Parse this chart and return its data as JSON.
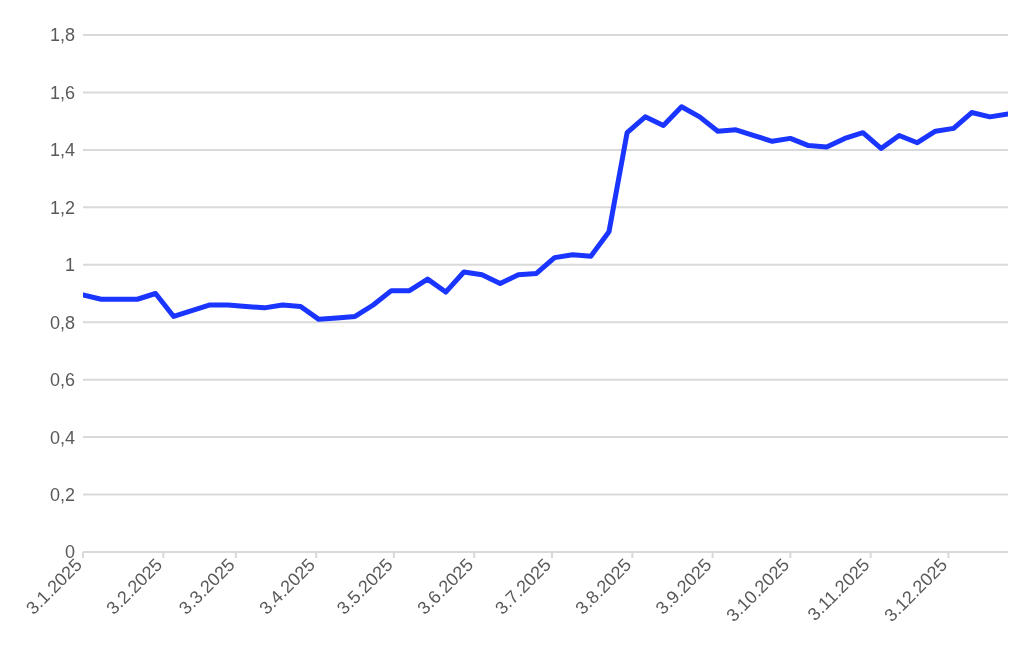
{
  "chart_data": {
    "type": "line",
    "x": [
      "2025-01-03",
      "2025-01-10",
      "2025-01-17",
      "2025-01-24",
      "2025-01-31",
      "2025-02-07",
      "2025-02-14",
      "2025-02-21",
      "2025-02-28",
      "2025-03-07",
      "2025-03-14",
      "2025-03-21",
      "2025-03-28",
      "2025-04-04",
      "2025-04-11",
      "2025-04-18",
      "2025-04-25",
      "2025-05-02",
      "2025-05-09",
      "2025-05-16",
      "2025-05-23",
      "2025-05-30",
      "2025-06-06",
      "2025-06-13",
      "2025-06-20",
      "2025-06-27",
      "2025-07-04",
      "2025-07-11",
      "2025-07-18",
      "2025-07-25",
      "2025-08-01",
      "2025-08-08",
      "2025-08-15",
      "2025-08-22",
      "2025-08-29",
      "2025-09-05",
      "2025-09-12",
      "2025-09-19",
      "2025-09-26",
      "2025-10-03",
      "2025-10-10",
      "2025-10-17",
      "2025-10-24",
      "2025-10-31",
      "2025-11-07",
      "2025-11-14",
      "2025-11-21",
      "2025-11-28",
      "2025-12-05",
      "2025-12-12",
      "2025-12-19",
      "2025-12-26"
    ],
    "series": [
      {
        "color": "#1a35ff",
        "values": [
          0.895,
          0.88,
          0.88,
          0.88,
          0.9,
          0.82,
          0.84,
          0.86,
          0.86,
          0.855,
          0.85,
          0.86,
          0.855,
          0.81,
          0.815,
          0.82,
          0.86,
          0.91,
          0.91,
          0.95,
          0.905,
          0.975,
          0.965,
          0.935,
          0.965,
          0.97,
          1.025,
          1.035,
          1.03,
          1.115,
          1.46,
          1.515,
          1.485,
          1.55,
          1.515,
          1.465,
          1.47,
          1.45,
          1.43,
          1.44,
          1.415,
          1.41,
          1.44,
          1.46,
          1.405,
          1.45,
          1.425,
          1.465,
          1.475,
          1.53,
          1.515,
          1.525
        ]
      }
    ],
    "xlim": [
      "2025-01-03",
      "2025-12-26"
    ],
    "xticks": [
      {
        "value": "2025-01-03",
        "label": "3.1.2025"
      },
      {
        "value": "2025-02-03",
        "label": "3.2.2025"
      },
      {
        "value": "2025-03-03",
        "label": "3.3.2025"
      },
      {
        "value": "2025-04-03",
        "label": "3.4.2025"
      },
      {
        "value": "2025-05-03",
        "label": "3.5.2025"
      },
      {
        "value": "2025-06-03",
        "label": "3.6.2025"
      },
      {
        "value": "2025-07-03",
        "label": "3.7.2025"
      },
      {
        "value": "2025-08-03",
        "label": "3.8.2025"
      },
      {
        "value": "2025-09-03",
        "label": "3.9.2025"
      },
      {
        "value": "2025-10-03",
        "label": "3.10.2025"
      },
      {
        "value": "2025-11-03",
        "label": "3.11.2025"
      },
      {
        "value": "2025-12-03",
        "label": "3.12.2025"
      }
    ],
    "ylim": [
      0,
      1.8
    ],
    "yticks": [
      0,
      {
        "value": 0.2,
        "label": "0,2"
      },
      {
        "value": 0.4,
        "label": "0,4"
      },
      {
        "value": 0.6,
        "label": "0,6"
      },
      {
        "value": 0.8,
        "label": "0,8"
      },
      1,
      {
        "value": 1.2,
        "label": "1,2"
      },
      {
        "value": 1.4,
        "label": "1,4"
      },
      {
        "value": 1.6,
        "label": "1,6"
      },
      {
        "value": 1.8,
        "label": "1,8"
      }
    ],
    "grid": "y",
    "marker": "none",
    "line_style": "solid"
  }
}
